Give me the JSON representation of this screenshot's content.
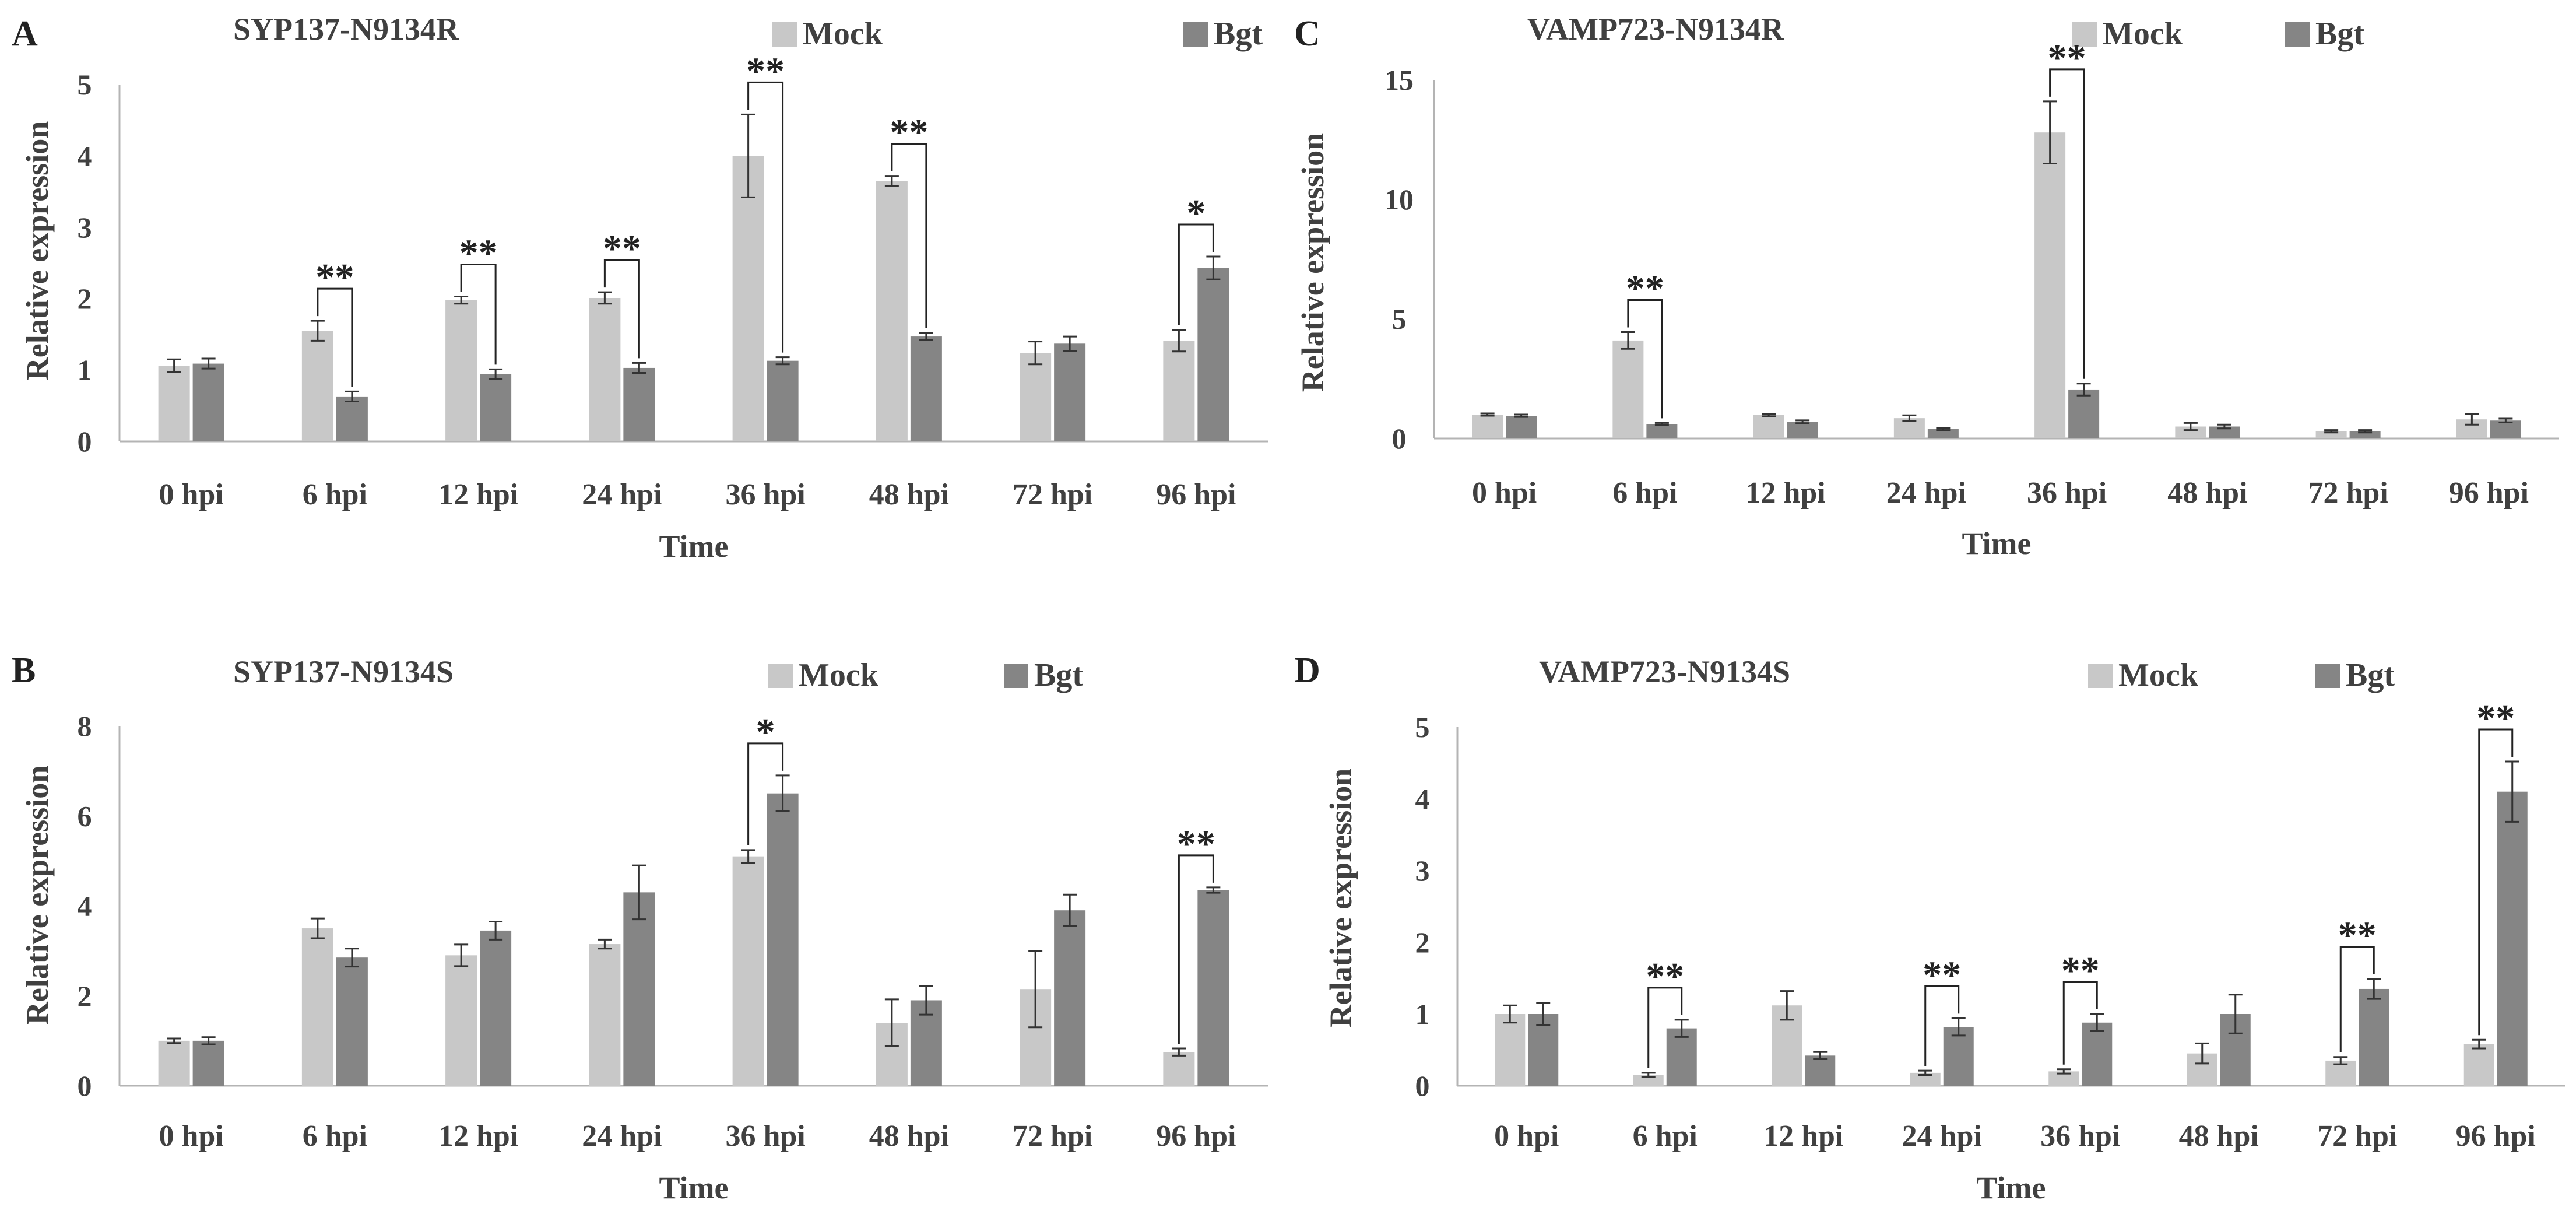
{
  "colors": {
    "mock": "#c8c8c8",
    "bgt": "#858585",
    "axis": "#b4b4b4",
    "text": "#404040",
    "marks": "#222222"
  },
  "chart_data": [
    {
      "type": "bar",
      "panel": "A",
      "title": "SYP137-N9134R",
      "xlabel": "Time",
      "ylabel": "Relative expression",
      "ylim": [
        0,
        5
      ],
      "yticks": [
        "0",
        "1",
        "2",
        "3",
        "4",
        "5"
      ],
      "legend": [
        "Mock",
        "Bgt"
      ],
      "categories": [
        "0 hpi",
        "6 hpi",
        "12 hpi",
        "24 hpi",
        "36 hpi",
        "48 hpi",
        "72 hpi",
        "96 hpi"
      ],
      "series": [
        {
          "name": "Mock",
          "values": [
            1.06,
            1.55,
            1.98,
            2.01,
            4.0,
            3.65,
            1.24,
            1.41
          ],
          "errors": [
            0.09,
            0.14,
            0.05,
            0.08,
            0.58,
            0.07,
            0.16,
            0.15
          ]
        },
        {
          "name": "Bgt",
          "values": [
            1.09,
            0.63,
            0.94,
            1.03,
            1.13,
            1.47,
            1.37,
            2.43
          ],
          "errors": [
            0.07,
            0.07,
            0.07,
            0.07,
            0.05,
            0.05,
            0.1,
            0.16
          ]
        }
      ],
      "significance": [
        {
          "category": 1,
          "label": "**"
        },
        {
          "category": 2,
          "label": "**"
        },
        {
          "category": 3,
          "label": "**"
        },
        {
          "category": 4,
          "label": "**"
        },
        {
          "category": 5,
          "label": "**"
        },
        {
          "category": 7,
          "label": "*"
        }
      ]
    },
    {
      "type": "bar",
      "panel": "B",
      "title": "SYP137-N9134S",
      "xlabel": "Time",
      "ylabel": "Relative expression",
      "ylim": [
        0,
        8
      ],
      "yticks": [
        "0",
        "2",
        "4",
        "6",
        "8"
      ],
      "legend": [
        "Mock",
        "Bgt"
      ],
      "categories": [
        "0 hpi",
        "6 hpi",
        "12 hpi",
        "24 hpi",
        "36 hpi",
        "48 hpi",
        "72 hpi",
        "96 hpi"
      ],
      "series": [
        {
          "name": "Mock",
          "values": [
            1.0,
            3.5,
            2.9,
            3.15,
            5.1,
            1.4,
            2.15,
            0.75
          ],
          "errors": [
            0.05,
            0.22,
            0.24,
            0.1,
            0.14,
            0.52,
            0.85,
            0.08
          ]
        },
        {
          "name": "Bgt",
          "values": [
            1.0,
            2.85,
            3.45,
            4.3,
            6.5,
            1.9,
            3.9,
            4.35
          ],
          "errors": [
            0.08,
            0.2,
            0.2,
            0.6,
            0.4,
            0.32,
            0.35,
            0.06
          ]
        }
      ],
      "significance": [
        {
          "category": 4,
          "label": "*"
        },
        {
          "category": 7,
          "label": "**"
        }
      ]
    },
    {
      "type": "bar",
      "panel": "C",
      "title": "VAMP723-N9134R",
      "xlabel": "Time",
      "ylabel": "Relative expression",
      "ylim": [
        0,
        15
      ],
      "yticks": [
        "0",
        "5",
        "10",
        "15"
      ],
      "legend": [
        "Mock",
        "Bgt"
      ],
      "categories": [
        "0 hpi",
        "6 hpi",
        "12 hpi",
        "24 hpi",
        "36 hpi",
        "48 hpi",
        "72 hpi",
        "96 hpi"
      ],
      "series": [
        {
          "name": "Mock",
          "values": [
            1.0,
            4.1,
            0.98,
            0.85,
            12.8,
            0.5,
            0.3,
            0.8
          ],
          "errors": [
            0.05,
            0.35,
            0.05,
            0.12,
            1.3,
            0.15,
            0.05,
            0.22
          ]
        },
        {
          "name": "Bgt",
          "values": [
            0.95,
            0.6,
            0.7,
            0.4,
            2.05,
            0.5,
            0.3,
            0.75
          ],
          "errors": [
            0.05,
            0.05,
            0.06,
            0.05,
            0.25,
            0.08,
            0.05,
            0.08
          ]
        }
      ],
      "significance": [
        {
          "category": 1,
          "label": "**"
        },
        {
          "category": 4,
          "label": "**"
        }
      ]
    },
    {
      "type": "bar",
      "panel": "D",
      "title": "VAMP723-N9134S",
      "xlabel": "Time",
      "ylabel": "Relative expression",
      "ylim": [
        0,
        5
      ],
      "yticks": [
        "0",
        "1",
        "2",
        "3",
        "4",
        "5"
      ],
      "legend": [
        "Mock",
        "Bgt"
      ],
      "categories": [
        "0 hpi",
        "6 hpi",
        "12 hpi",
        "24 hpi",
        "36 hpi",
        "48 hpi",
        "72 hpi",
        "96 hpi"
      ],
      "series": [
        {
          "name": "Mock",
          "values": [
            1.0,
            0.15,
            1.12,
            0.18,
            0.2,
            0.45,
            0.35,
            0.58
          ],
          "errors": [
            0.12,
            0.03,
            0.2,
            0.03,
            0.03,
            0.14,
            0.05,
            0.06
          ]
        },
        {
          "name": "Bgt",
          "values": [
            1.0,
            0.8,
            0.42,
            0.82,
            0.88,
            1.0,
            1.35,
            4.1
          ],
          "errors": [
            0.15,
            0.12,
            0.05,
            0.12,
            0.12,
            0.27,
            0.14,
            0.42
          ]
        }
      ],
      "significance": [
        {
          "category": 1,
          "label": "**"
        },
        {
          "category": 3,
          "label": "**"
        },
        {
          "category": 4,
          "label": "**"
        },
        {
          "category": 6,
          "label": "**"
        },
        {
          "category": 7,
          "label": "**"
        }
      ]
    }
  ]
}
